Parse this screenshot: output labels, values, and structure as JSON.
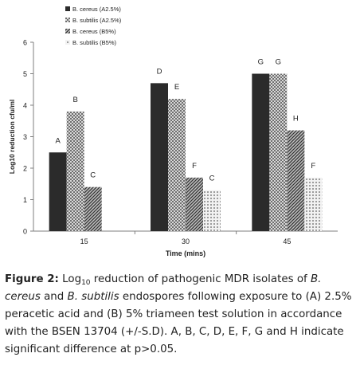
{
  "chart_data": {
    "type": "bar",
    "categories": [
      "15",
      "30",
      "45"
    ],
    "xlabel": "Time (mins)",
    "ylabel": "Log10 reduction cfu/ml",
    "ylim": [
      0,
      6
    ],
    "yticks": [
      "0",
      "1",
      "2",
      "3",
      "4",
      "5",
      "6"
    ],
    "grid": false,
    "legend_position": "top-left",
    "series": [
      {
        "name": "B. cereus (A2.5%)",
        "values": [
          2.5,
          4.7,
          5.0
        ],
        "labels": [
          "A",
          "D",
          "G"
        ],
        "fill": "solid",
        "color": "#2b2b2b"
      },
      {
        "name": "B. subtilis (A2.5%)",
        "values": [
          3.8,
          4.2,
          5.0
        ],
        "labels": [
          "B",
          "E",
          "G"
        ],
        "fill": "checker",
        "color": "#9a9a9a"
      },
      {
        "name": "B. cereus (B5%)",
        "values": [
          1.4,
          1.7,
          3.2
        ],
        "labels": [
          "C",
          "F",
          "H"
        ],
        "fill": "diagonal",
        "color": "#555555"
      },
      {
        "name": "B. subtilis (B5%)",
        "values": [
          0.0,
          1.3,
          1.7
        ],
        "labels": [
          "",
          "C",
          "F"
        ],
        "fill": "dots",
        "color": "#bdbdbd"
      }
    ]
  },
  "caption": {
    "label": "Figure 2:",
    "t1": "Log",
    "t1_sub": "10",
    "t2": " reduction of pathogenic MDR isolates of ",
    "sp1": "B. cereus",
    "t3": " and ",
    "sp2": "B. subtilis",
    "t4": " endospores following exposure to (A) 2.5% peracetic acid and (B) 5% triameen test solution in accordance with the BSEN 13704 (+/-S.D). A, B, C, D, E, F, G and H indicate significant difference at p>0.05."
  }
}
